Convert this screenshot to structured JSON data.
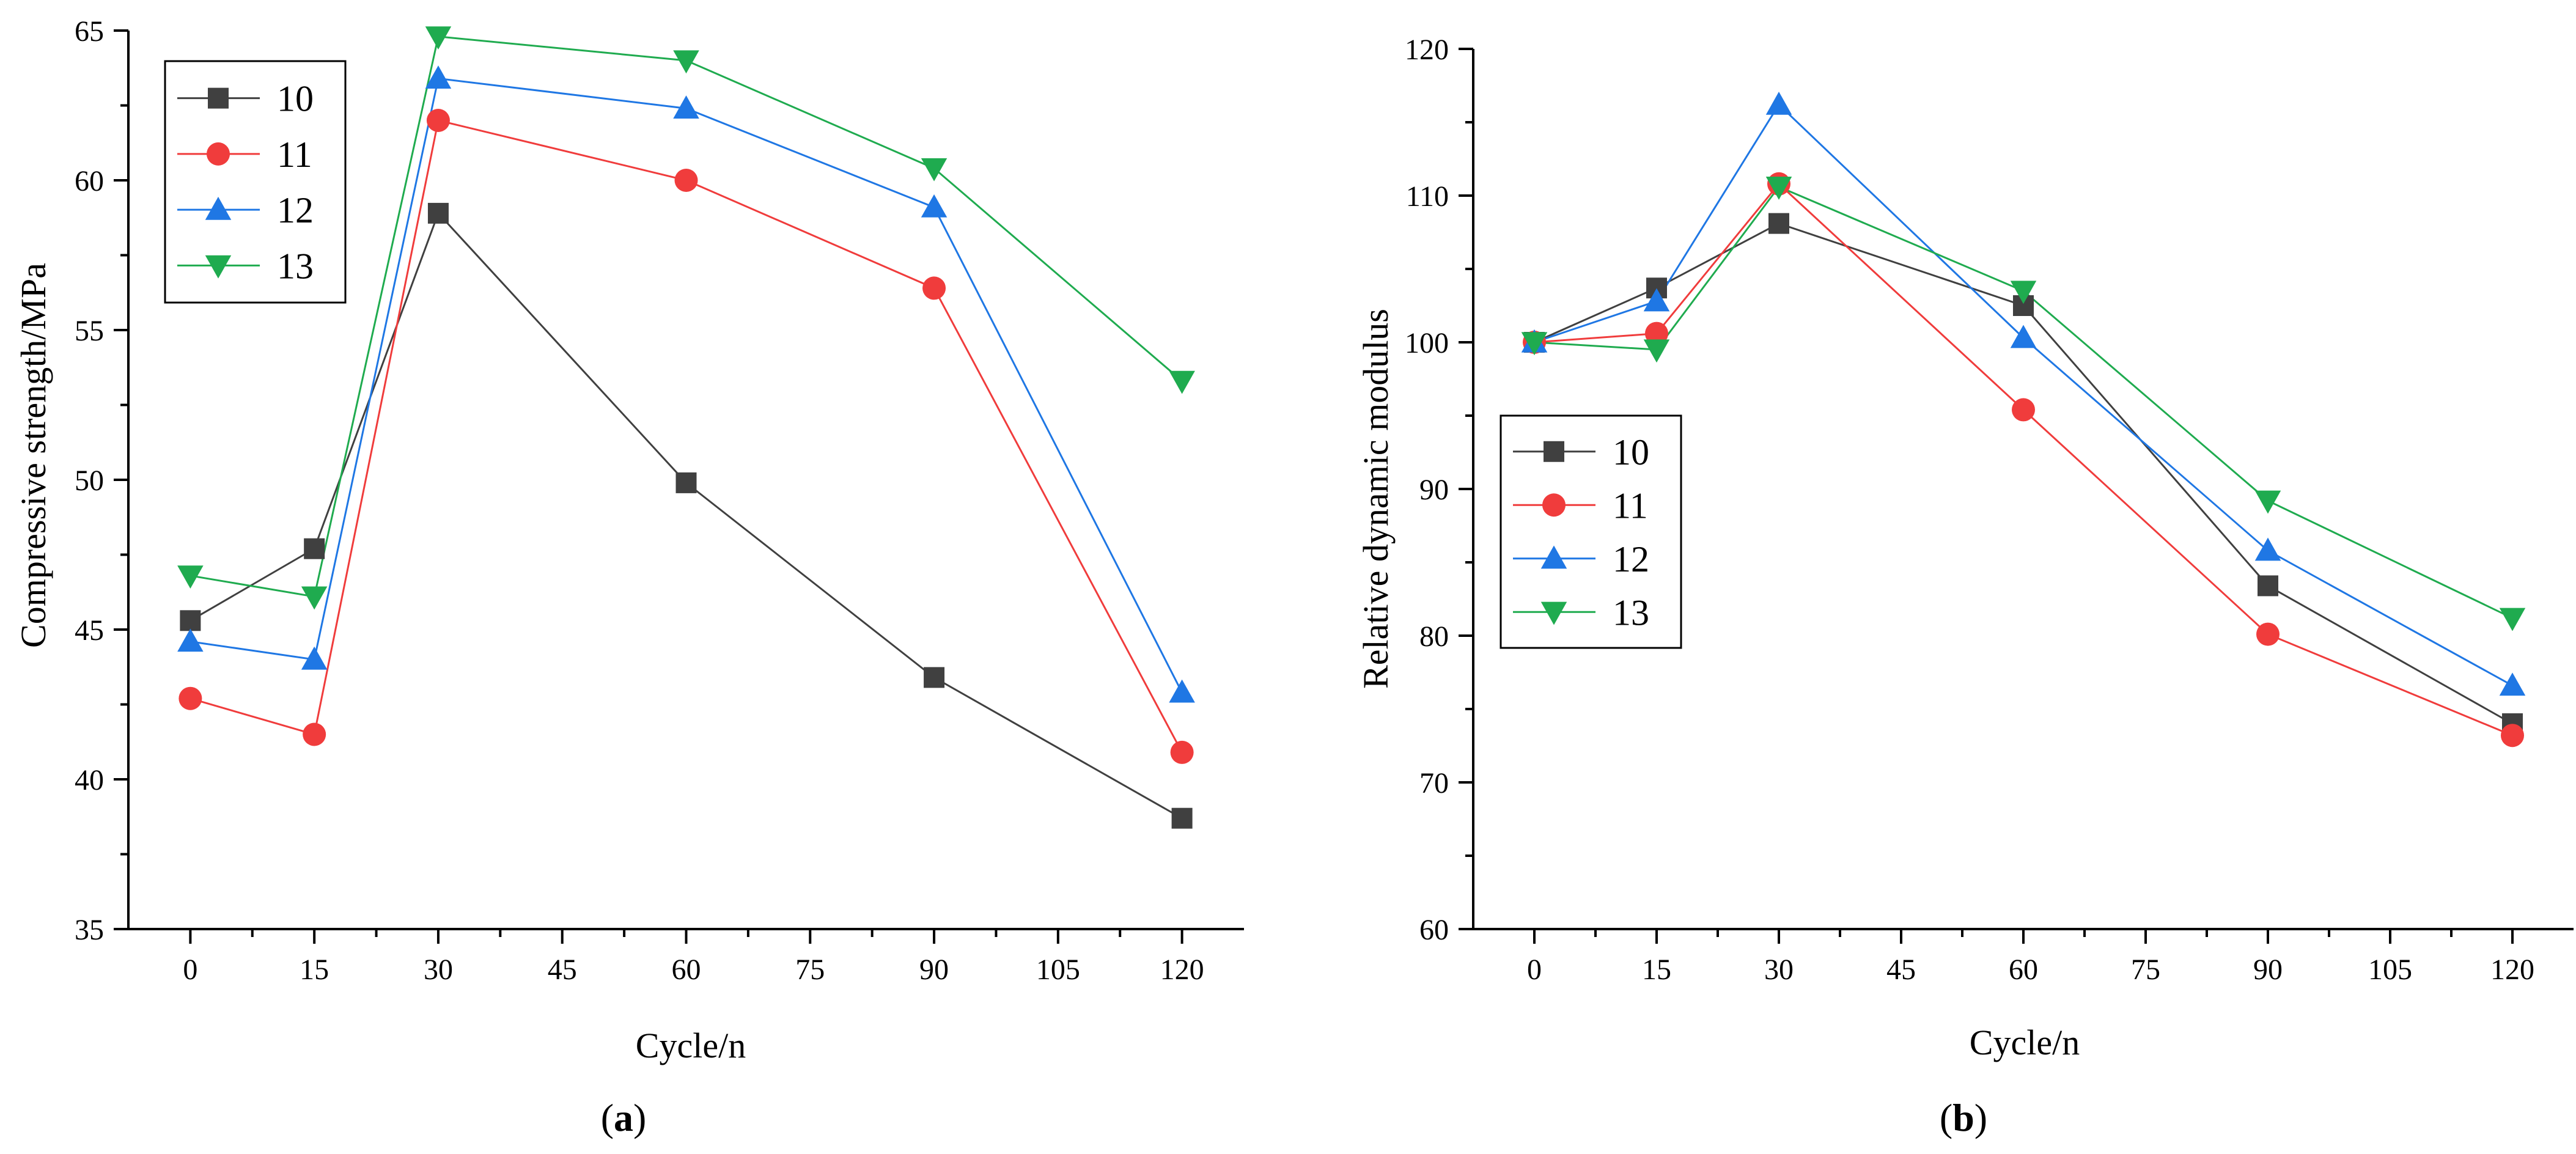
{
  "chart_data": [
    {
      "panel": "a",
      "panel_label_open": "(",
      "panel_label_letter": "a",
      "panel_label_close": ")",
      "type": "line",
      "xlabel": "Cycle/n",
      "ylabel": "Compressive strength/MPa",
      "x": [
        0,
        15,
        30,
        60,
        90,
        120
      ],
      "xlim": [
        -7.5,
        127.5
      ],
      "ylim": [
        35,
        65
      ],
      "xticks": [
        0,
        15,
        30,
        45,
        60,
        75,
        90,
        105,
        120
      ],
      "yticks": [
        35,
        40,
        45,
        50,
        55,
        60,
        65
      ],
      "legend_position": "top-left",
      "series": [
        {
          "name": "10",
          "color": "#404040",
          "marker": "square",
          "values": [
            45.3,
            47.7,
            58.9,
            49.9,
            43.4,
            38.7
          ]
        },
        {
          "name": "11",
          "color": "#f03c3c",
          "marker": "circle",
          "values": [
            42.7,
            41.5,
            62.0,
            60.0,
            56.4,
            40.9
          ]
        },
        {
          "name": "12",
          "color": "#1f77e4",
          "marker": "triangle-up",
          "values": [
            44.6,
            44.0,
            63.4,
            62.4,
            59.1,
            42.9
          ]
        },
        {
          "name": "13",
          "color": "#1fab4f",
          "marker": "triangle-down",
          "values": [
            46.8,
            46.1,
            64.8,
            64.0,
            60.4,
            53.3
          ]
        }
      ]
    },
    {
      "panel": "b",
      "panel_label_open": "(",
      "panel_label_letter": "b",
      "panel_label_close": ")",
      "type": "line",
      "xlabel": "Cycle/n",
      "ylabel": "Relative dynamic modulus",
      "x": [
        0,
        15,
        30,
        60,
        90,
        120
      ],
      "xlim": [
        -7.5,
        127.5
      ],
      "ylim": [
        60,
        120
      ],
      "xticks": [
        0,
        15,
        30,
        45,
        60,
        75,
        90,
        105,
        120
      ],
      "yticks": [
        60,
        70,
        80,
        90,
        100,
        110,
        120
      ],
      "legend_position": "middle-left",
      "series": [
        {
          "name": "10",
          "color": "#404040",
          "marker": "square",
          "values": [
            100.0,
            103.7,
            108.1,
            102.5,
            83.4,
            74.0
          ]
        },
        {
          "name": "11",
          "color": "#f03c3c",
          "marker": "circle",
          "values": [
            100.0,
            100.6,
            110.8,
            95.4,
            80.1,
            73.2
          ]
        },
        {
          "name": "12",
          "color": "#1f77e4",
          "marker": "triangle-up",
          "values": [
            100.0,
            102.8,
            116.2,
            100.3,
            85.8,
            76.6
          ]
        },
        {
          "name": "13",
          "color": "#1fab4f",
          "marker": "triangle-down",
          "values": [
            100.0,
            99.5,
            110.6,
            103.5,
            89.2,
            81.2
          ]
        }
      ]
    }
  ]
}
